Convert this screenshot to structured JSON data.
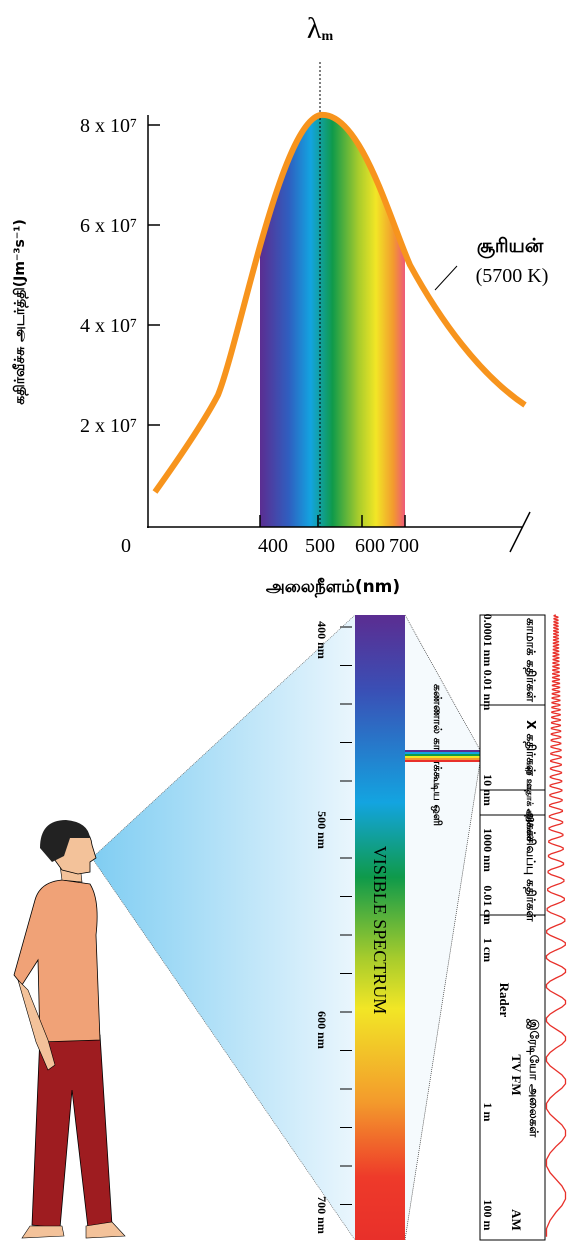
{
  "graph": {
    "peak_symbol": "λ",
    "peak_subscript": "m",
    "y_label": "கதிர்வீச்சு அடர்த்தி(Jm⁻³s⁻¹)",
    "y_ticks": [
      "8 x 10⁷",
      "6 x 10⁷",
      "4 x 10⁷",
      "2 x 10⁷"
    ],
    "origin": "0",
    "x_ticks": [
      "400",
      "500",
      "600",
      "700"
    ],
    "x_label": "அலைநீளம்(nm)",
    "curve_name": "சூரியன்",
    "curve_temp": "(5700 K)"
  },
  "visible": {
    "marks": [
      "400 nm",
      "500 nm",
      "600 nm",
      "700 nm"
    ],
    "title": "VISIBLE SPECTRUM",
    "caption": "கண்ணால் காணக்கூடிய ஒளி"
  },
  "spectrum": {
    "regions": [
      "காமாக் கதிர்கள்",
      "X கதிர்கள்",
      "புற ஊதாக் கதிர்கள்",
      "அகச்சிவப்பு கதிர்கள்",
      "இரேடியோ அலைகள்"
    ],
    "wavelengths": [
      "0.0001 nm",
      "0.01 nm",
      "10 nm",
      "1000 nm",
      "0.01 cm",
      "1 cm",
      "1 m",
      "100 m"
    ],
    "radio_bands": [
      "Rader",
      "TV FM",
      "AM"
    ]
  }
}
